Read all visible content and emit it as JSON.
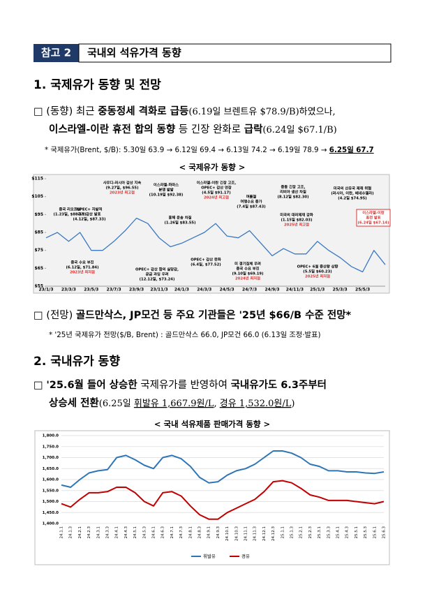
{
  "header": {
    "badge": "참고 2",
    "title": "국내외 석유가격 동향"
  },
  "section1": {
    "heading": "1. 국제유가 동향 및 전망",
    "p1": {
      "line1": [
        "□ (동향) ",
        "최근 ",
        "중동정세 격화로 급등",
        "(6.19일 브렌트유 $78.9/B)하였으나,"
      ],
      "line2": [
        "이스라엘-이란 휴전 합의 동향",
        " 등 긴장 완화로 ",
        "급락",
        "(6.24일 $67.1/B)"
      ]
    },
    "note1": [
      "* 국제유가(Brent, $/B): 5.30일 63.9 → 6.12일 69.4 → 6.13일 74.2 → 6.19일 78.9 → ",
      "6.25일 67.7"
    ],
    "p2": [
      "□ (전망) ",
      "골드만삭스, JP모건 등 주요 기관들은 '25년 $66/B 수준 전망*"
    ],
    "note2": "* '25년 국제유가 전망($/B, Brent) : 골드만삭스 66.0, JP모건 66.0 (6.13일 조정·발표)"
  },
  "section2": {
    "heading": "2. 국내유가 동향",
    "p1": {
      "line1": [
        "□ ",
        "'25.6월 들어 상승한",
        " 국제유가를 반영하여 ",
        "국내유가도 6.3주부터"
      ],
      "line2": [
        "상승세 전환",
        "(6.25일 ",
        "휘발유 1,667.9원/L",
        ", ",
        "경유 1,532.0원/L",
        ")"
      ]
    }
  },
  "chart_data": [
    {
      "type": "line",
      "title": "< 국제유가 동향 >",
      "categories": [
        "23/1/3",
        null,
        "23/3/3",
        null,
        "23/5/3",
        null,
        "23/7/3",
        null,
        "23/9/3",
        null,
        "23/11/3",
        null,
        "24/1/3",
        null,
        "24/3/3",
        null,
        "24/5/3",
        null,
        "24/7/3",
        null,
        "24/9/3",
        null,
        "24/11/3",
        null,
        "25/1/3",
        null,
        "25/3/3",
        null,
        "25/5/3",
        null,
        null
      ],
      "values": [
        82,
        85,
        80,
        85,
        75,
        75,
        80,
        86,
        93,
        90,
        82,
        77,
        79,
        82,
        85,
        90,
        83,
        82,
        86,
        79,
        72,
        76,
        73,
        73,
        80,
        75,
        71,
        66,
        63,
        75,
        67
      ],
      "color": "#3a78c2",
      "ylim": [
        55,
        115
      ],
      "yticks": [
        {
          "value": 55,
          "label": "$55"
        },
        {
          "value": 65,
          "label": "$65"
        },
        {
          "value": 75,
          "label": "$75"
        },
        {
          "value": 85,
          "label": "$85"
        },
        {
          "value": 95,
          "label": "$95"
        },
        {
          "value": 105,
          "label": "$105"
        },
        {
          "value": 115,
          "label": "$115"
        }
      ],
      "annotations": [
        {
          "lines": [
            "중국 리오프닝",
            "(1.23일, $88.19)"
          ]
        },
        {
          "lines": [
            "사우디-러시아 감산 지속",
            "(9.27일, $96.55)"
          ],
          "highlight": "2023년 최고점"
        },
        {
          "lines": [
            "OPEC+ 자발적",
            "추가 감산 발표",
            "(4.12일, $87.33)"
          ]
        },
        {
          "lines": [
            "이스라엘-하마스",
            "분쟁 발발",
            "(10.19일 $92.38)"
          ]
        },
        {
          "lines": [
            "홍해 운송 차질",
            "(1.26일 $83.55)"
          ]
        },
        {
          "lines": [
            "이스라엘-이란 긴장 고조,",
            "OPEC+ 감산 연장",
            "(4.5일 $91.17)"
          ],
          "highlight": "2024년 최고점"
        },
        {
          "lines": [
            "여름철",
            "여행수요 증가",
            "(7.4일 $87.43)"
          ]
        },
        {
          "lines": [
            "중동 긴장 고조,",
            "리비아 생산 차질",
            "(8.12일 $82.30)"
          ]
        },
        {
          "lines": [
            "미국의 대러제재 강화",
            "(1.15일 $82.03)"
          ],
          "highlight": "2025년 최고점"
        },
        {
          "lines": [
            "미국의 산유국 제재 위협",
            "(러시아, 이란, 베네수엘라)",
            "(4.2일 $74.95)"
          ]
        },
        {
          "lines": [
            "이스라엘-이란",
            "휴전 발표",
            "(6.24일 $67.14)"
          ]
        },
        {
          "lines": [
            "중국 수요 부진",
            "(6.12일, $71.84)"
          ],
          "highlight": "2023년 최저점"
        },
        {
          "lines": [
            "OPEC+ 감산 합의 실망감,",
            "공급 과잉 우려",
            "(12.12일, $73.24)"
          ]
        },
        {
          "lines": [
            "OPEC+ 감산 완화",
            "(6.4일, $77.52)"
          ]
        },
        {
          "lines": [
            "미 경기침체 우려",
            "중국 수요 부진",
            "(9.10일 $69.19)"
          ],
          "highlight": "2024년 최저점"
        },
        {
          "lines": [
            "OPEC+ 6월 증산량 상향",
            "(5.5일 $60.23)"
          ],
          "highlight": "2025년 최저점"
        }
      ]
    },
    {
      "type": "line",
      "title": "< 국내 석유제품 판매가격 동향 >",
      "categories": [
        "24.1.1",
        "24.1.3",
        "24.2.1",
        "24.2.3",
        "24.3.1",
        "24.3.3",
        "24.4.1",
        "24.4.3",
        "24.5.1",
        "24.5.3",
        "24.6.1",
        "24.6.3",
        "24.7.1",
        "24.7.3",
        "24.8.1",
        "24.8.3",
        "24.9.1",
        "24.9.3",
        "24.10.1",
        "24.10.3",
        "24.11.1",
        "24.11.3",
        "24.12.1",
        "24.12.3",
        "25.1.1",
        "25.1.3",
        "25.2.1",
        "25.2.3",
        "25.3.1",
        "25.3.3",
        "25.4.1",
        "25.4.3",
        "25.5.1",
        "25.5.3",
        "25.6.1",
        "25.6.3"
      ],
      "series": [
        {
          "name": "휘발유",
          "color": "#2e75b6",
          "values": [
            1575,
            1565,
            1600,
            1630,
            1640,
            1645,
            1700,
            1710,
            1690,
            1665,
            1650,
            1700,
            1710,
            1695,
            1660,
            1610,
            1585,
            1590,
            1620,
            1640,
            1650,
            1670,
            1700,
            1730,
            1730,
            1720,
            1700,
            1670,
            1660,
            1640,
            1640,
            1635,
            1635,
            1630,
            1628,
            1635
          ]
        },
        {
          "name": "경유",
          "color": "#c00000",
          "values": [
            1490,
            1475,
            1510,
            1540,
            1540,
            1545,
            1565,
            1565,
            1540,
            1500,
            1480,
            1540,
            1545,
            1525,
            1480,
            1440,
            1420,
            1420,
            1450,
            1470,
            1490,
            1510,
            1545,
            1590,
            1595,
            1585,
            1560,
            1530,
            1520,
            1505,
            1505,
            1505,
            1500,
            1495,
            1490,
            1500
          ]
        }
      ],
      "ylim": [
        1400,
        1800
      ],
      "yticks": [
        {
          "value": 1400,
          "label": "1,400.0"
        },
        {
          "value": 1450,
          "label": "1,450.0"
        },
        {
          "value": 1500,
          "label": "1,500.0"
        },
        {
          "value": 1550,
          "label": "1,550.0"
        },
        {
          "value": 1600,
          "label": "1,600.0"
        },
        {
          "value": 1650,
          "label": "1,650.0"
        },
        {
          "value": 1700,
          "label": "1,700.0"
        },
        {
          "value": 1750,
          "label": "1,750.0"
        },
        {
          "value": 1800,
          "label": "1,800.0"
        }
      ],
      "grid": true,
      "legend": "bottom"
    }
  ]
}
